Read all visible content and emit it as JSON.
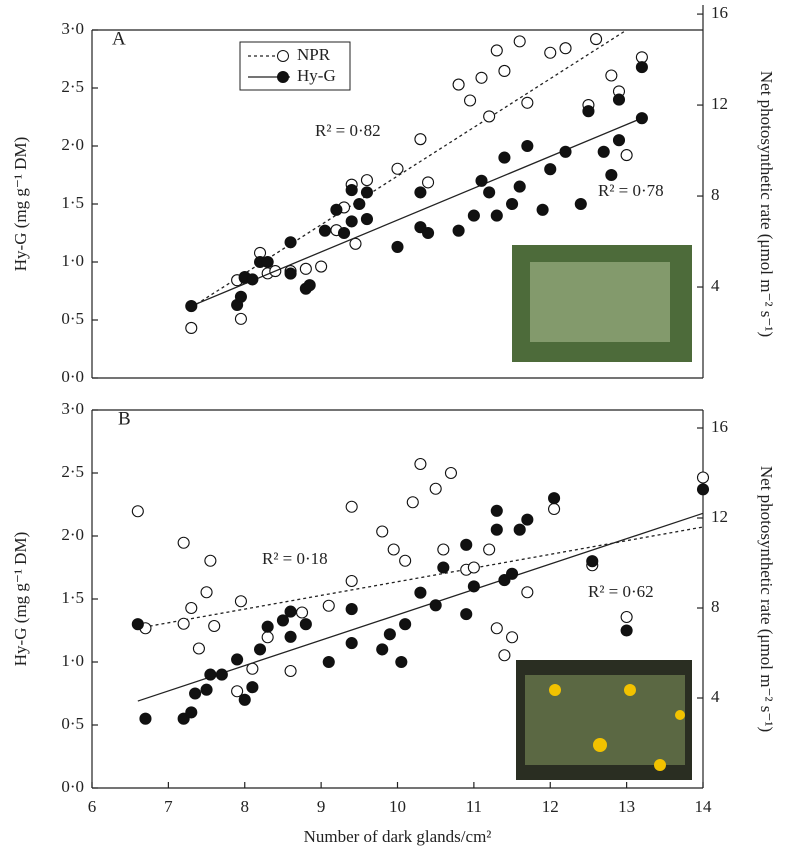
{
  "chart_data": [
    {
      "type": "scatter",
      "panel_label": "A",
      "legend": true,
      "xlim": [
        6,
        14
      ],
      "ylim": [
        0,
        3
      ],
      "yticks": [
        {
          "value": 0,
          "label": "0·0"
        },
        {
          "value": 0.5,
          "label": "0·5"
        },
        {
          "value": 1,
          "label": "1·0"
        },
        {
          "value": 1.5,
          "label": "1·5"
        },
        {
          "value": 2,
          "label": "2·0"
        },
        {
          "value": 2.5,
          "label": "2·5"
        },
        {
          "value": 3,
          "label": "3·0"
        }
      ],
      "ylabel": "Hy-G (mg g⁻¹ DM)",
      "y2lim": [
        0,
        15.3
      ],
      "y2ticks": [
        4,
        8,
        12,
        16
      ],
      "y2label": "Net photosynthetic rate (μmol m⁻² s⁻¹)",
      "annotations": [
        "R² = 0·82",
        "R² = 0·78"
      ],
      "series": [
        {
          "name": "NPR",
          "marker": "open",
          "axis": "y2",
          "line": "dotted",
          "x": [
            7.3,
            7.9,
            7.95,
            8.0,
            8.2,
            8.3,
            8.4,
            8.6,
            8.8,
            9.0,
            9.2,
            9.3,
            9.4,
            9.45,
            9.6,
            10.0,
            10.3,
            10.4,
            10.8,
            10.95,
            11.1,
            11.2,
            11.3,
            11.4,
            11.6,
            11.7,
            12.0,
            12.2,
            12.5,
            12.6,
            12.8,
            12.9,
            13.0,
            13.2
          ],
          "values": [
            2.2,
            4.3,
            2.6,
            4.4,
            5.5,
            4.6,
            4.7,
            4.7,
            4.8,
            4.9,
            6.5,
            7.5,
            8.5,
            5.9,
            8.7,
            9.2,
            10.5,
            8.6,
            12.9,
            12.2,
            13.2,
            11.5,
            14.4,
            13.5,
            14.8,
            12.1,
            14.3,
            14.5,
            12.0,
            14.9,
            13.3,
            12.6,
            9.8,
            14.1
          ],
          "fit_x": [
            7.3,
            13.0
          ],
          "fit_values": [
            3.1,
            15.3
          ]
        },
        {
          "name": "Hy-G",
          "marker": "filled",
          "line": "solid",
          "x": [
            7.3,
            7.9,
            7.95,
            8.0,
            8.1,
            8.2,
            8.3,
            8.6,
            8.6,
            8.8,
            8.85,
            9.05,
            9.2,
            9.3,
            9.4,
            9.4,
            9.5,
            9.6,
            9.6,
            10.0,
            10.3,
            10.3,
            10.4,
            10.8,
            11.0,
            11.1,
            11.2,
            11.3,
            11.4,
            11.5,
            11.6,
            11.7,
            11.9,
            12.0,
            12.2,
            12.4,
            12.5,
            12.7,
            12.8,
            12.9,
            12.9,
            13.2,
            13.2
          ],
          "values": [
            0.62,
            0.63,
            0.7,
            0.87,
            0.85,
            1.0,
            1.0,
            1.17,
            0.9,
            0.77,
            0.8,
            1.27,
            1.45,
            1.25,
            1.35,
            1.62,
            1.5,
            1.6,
            1.37,
            1.13,
            1.3,
            1.6,
            1.25,
            1.27,
            1.4,
            1.7,
            1.6,
            1.4,
            1.9,
            1.5,
            1.65,
            2.0,
            1.45,
            1.8,
            1.95,
            1.5,
            2.3,
            1.95,
            1.75,
            2.4,
            2.05,
            2.68,
            2.24
          ],
          "fit_x": [
            7.3,
            13.2
          ],
          "fit_values": [
            0.62,
            2.24
          ]
        }
      ]
    },
    {
      "type": "scatter",
      "panel_label": "B",
      "legend": false,
      "xlim": [
        6,
        14
      ],
      "xticks": [
        6,
        7,
        8,
        9,
        10,
        11,
        12,
        13,
        14
      ],
      "xlabel": "Number of dark glands/cm²",
      "ylim": [
        0,
        3
      ],
      "yticks": [
        {
          "value": 0,
          "label": "0·0"
        },
        {
          "value": 0.5,
          "label": "0·5"
        },
        {
          "value": 1,
          "label": "1·0"
        },
        {
          "value": 1.5,
          "label": "1·5"
        },
        {
          "value": 2,
          "label": "2·0"
        },
        {
          "value": 2.5,
          "label": "2·5"
        },
        {
          "value": 3,
          "label": "3·0"
        }
      ],
      "ylabel": "Hy-G (mg g⁻¹ DM)",
      "y2lim": [
        0,
        16.8
      ],
      "y2ticks": [
        4,
        8,
        12,
        16
      ],
      "y2label": "Net photosynthetic rate (μmol m⁻² s⁻¹)",
      "annotations": [
        "R² = 0·18",
        "R² = 0·62"
      ],
      "series": [
        {
          "name": "NPR",
          "marker": "open",
          "axis": "y2",
          "line": "dotted",
          "x": [
            6.6,
            6.7,
            7.2,
            7.2,
            7.3,
            7.4,
            7.5,
            7.55,
            7.6,
            7.95,
            7.9,
            8.1,
            8.3,
            8.6,
            8.75,
            9.1,
            9.4,
            9.4,
            9.8,
            9.95,
            10.1,
            10.2,
            10.3,
            10.5,
            10.7,
            10.6,
            10.9,
            11.0,
            11.2,
            11.3,
            11.5,
            11.4,
            11.7,
            12.05,
            12.55,
            13.0,
            14.0
          ],
          "values": [
            12.3,
            7.1,
            10.9,
            7.3,
            8.0,
            6.2,
            8.7,
            10.1,
            7.2,
            8.3,
            4.3,
            5.3,
            6.7,
            5.2,
            7.8,
            8.1,
            9.2,
            12.5,
            11.4,
            10.6,
            10.1,
            12.7,
            14.4,
            13.3,
            14.0,
            10.6,
            9.7,
            9.8,
            10.6,
            7.1,
            6.7,
            5.9,
            8.7,
            12.4,
            9.9,
            7.6,
            13.8
          ],
          "fit_x": [
            6.6,
            14.0
          ],
          "fit_values": [
            7.1,
            11.6
          ]
        },
        {
          "name": "Hy-G",
          "marker": "filled",
          "line": "solid",
          "x": [
            6.6,
            6.7,
            7.2,
            7.3,
            7.35,
            7.5,
            7.55,
            7.7,
            7.9,
            8.0,
            8.1,
            8.2,
            8.3,
            8.5,
            8.6,
            8.6,
            8.8,
            9.1,
            9.4,
            9.4,
            9.8,
            9.9,
            10.05,
            10.1,
            10.3,
            10.5,
            10.6,
            10.9,
            10.9,
            11.0,
            11.3,
            11.3,
            11.4,
            11.5,
            11.6,
            11.7,
            12.05,
            12.55,
            13.0,
            14.0
          ],
          "values": [
            1.3,
            0.55,
            0.55,
            0.6,
            0.75,
            0.78,
            0.9,
            0.9,
            1.02,
            0.7,
            0.8,
            1.1,
            1.28,
            1.33,
            1.2,
            1.4,
            1.3,
            1.0,
            1.15,
            1.42,
            1.1,
            1.22,
            1.0,
            1.3,
            1.55,
            1.45,
            1.75,
            1.93,
            1.38,
            1.6,
            2.05,
            2.2,
            1.65,
            1.7,
            2.05,
            2.13,
            2.3,
            1.8,
            1.25,
            2.37
          ],
          "fit_x": [
            6.6,
            14.0
          ],
          "fit_values": [
            0.69,
            2.18
          ]
        }
      ]
    }
  ]
}
